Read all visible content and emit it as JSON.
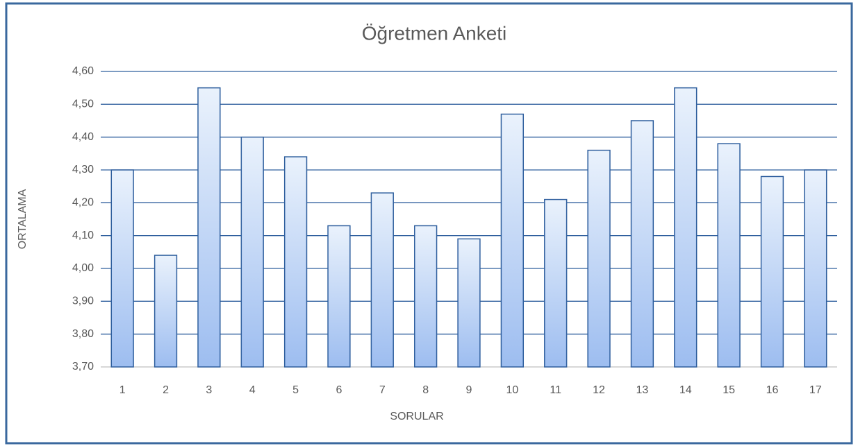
{
  "chart_data": {
    "type": "bar",
    "title": "Öğretmen Anketi",
    "x_label": "SORULAR",
    "y_label": "ORTALAMA",
    "categories": [
      "1",
      "2",
      "3",
      "4",
      "5",
      "6",
      "7",
      "8",
      "9",
      "10",
      "11",
      "12",
      "13",
      "14",
      "15",
      "16",
      "17"
    ],
    "values": [
      4.3,
      4.04,
      4.55,
      4.4,
      4.34,
      4.13,
      4.23,
      4.13,
      4.09,
      4.47,
      4.21,
      4.36,
      4.45,
      4.55,
      4.38,
      4.28,
      4.3
    ],
    "color": "#9dbdf0",
    "ylim": [
      3.7,
      4.6
    ],
    "yticks": [
      {
        "value": 3.7,
        "label": "3,70"
      },
      {
        "value": 3.8,
        "label": "3,80"
      },
      {
        "value": 3.9,
        "label": "3,90"
      },
      {
        "value": 4.0,
        "label": "4,00"
      },
      {
        "value": 4.1,
        "label": "4,10"
      },
      {
        "value": 4.2,
        "label": "4,20"
      },
      {
        "value": 4.3,
        "label": "4,30"
      },
      {
        "value": 4.4,
        "label": "4,40"
      },
      {
        "value": 4.5,
        "label": "4,50"
      },
      {
        "value": 4.6,
        "label": "4,60"
      }
    ],
    "grid": true
  }
}
